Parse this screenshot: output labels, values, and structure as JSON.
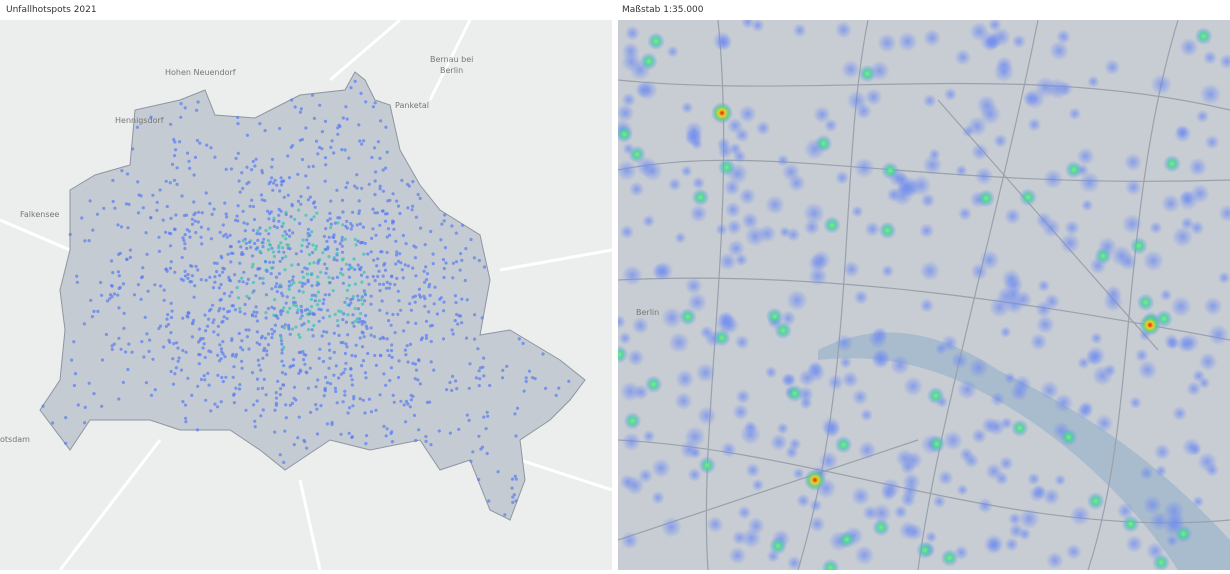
{
  "header": {
    "left_title": "Unfallhotspots 2021",
    "right_title": "Maßstab 1:35.000"
  },
  "left_map": {
    "places": [
      "Hohen Neuendorf",
      "Bernau bei",
      "Berlin",
      "Panketal",
      "Hennigsdorf",
      "Falkensee",
      "otsdam"
    ]
  },
  "right_map": {
    "places": [
      "Berlin"
    ]
  }
}
